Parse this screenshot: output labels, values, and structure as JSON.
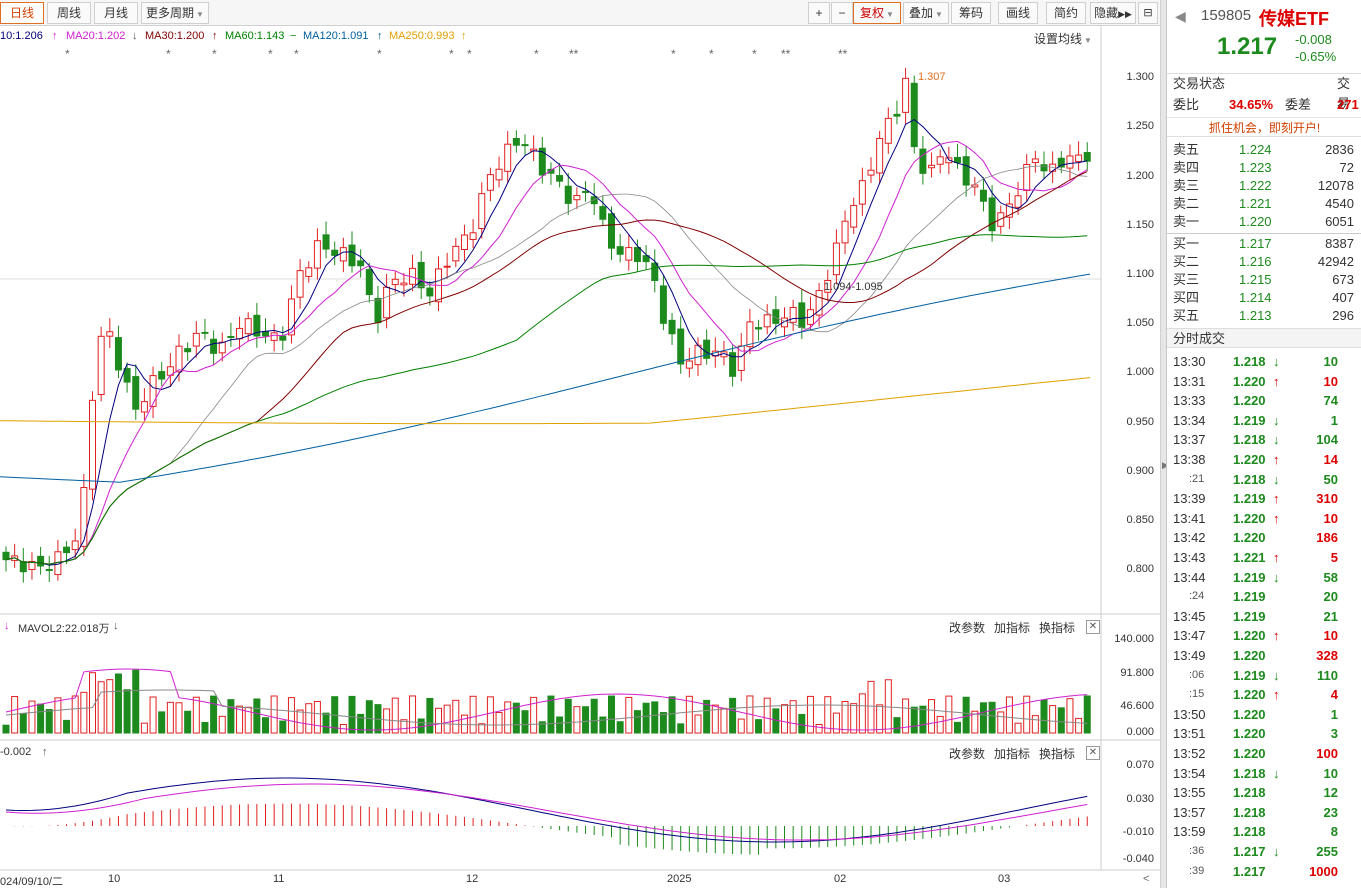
{
  "toolbar": {
    "tabs": [
      "日线",
      "周线",
      "月线",
      "更多周期"
    ],
    "tools": [
      "+",
      "−",
      "复权",
      "叠加",
      "筹码",
      "画线",
      "简约",
      "隐藏"
    ]
  },
  "ma_legend": {
    "ma10": "10:1.206",
    "ma20": "MA20:1.202",
    "ma30": "MA30:1.200",
    "ma60": "MA60:1.143",
    "ma120": "MA120:1.091",
    "ma250": "MA250:0.993",
    "settings": "设置均线"
  },
  "price_axis": [
    "1.300",
    "1.250",
    "1.200",
    "1.150",
    "1.100",
    "1.050",
    "1.000",
    "0.950",
    "0.900",
    "0.850",
    "0.800"
  ],
  "annotations": {
    "high": "1.307",
    "mid": "1.094-1.095"
  },
  "vol_panel": {
    "legend": "MAVOL2:22.018万",
    "links": [
      "改参数",
      "加指标",
      "换指标"
    ],
    "axis": [
      "140.000",
      "91.800",
      "46.600",
      "0.000"
    ]
  },
  "macd_panel": {
    "legend": "-0.002",
    "links": [
      "改参数",
      "加指标",
      "换指标"
    ],
    "axis": [
      "0.070",
      "0.030",
      "-0.010",
      "-0.040"
    ]
  },
  "x_axis": [
    "024/09/10/二",
    "10",
    "11",
    "12",
    "2025",
    "02",
    "03"
  ],
  "quote": {
    "code": "159805",
    "name": "传媒ETF",
    "price": "1.217",
    "change": "-0.008",
    "pct": "-0.65%",
    "status_label": "交易状态",
    "status_right": "交易",
    "ratio_label": "委比",
    "ratio_val": "34.65%",
    "diff_label": "委差",
    "diff_val": "271",
    "promo": "抓住机会，即刻开户!",
    "asks": [
      [
        "卖五",
        "1.224",
        "2836"
      ],
      [
        "卖四",
        "1.223",
        "72"
      ],
      [
        "卖三",
        "1.222",
        "12078"
      ],
      [
        "卖二",
        "1.221",
        "4540"
      ],
      [
        "卖一",
        "1.220",
        "6051"
      ]
    ],
    "bids": [
      [
        "买一",
        "1.217",
        "8387"
      ],
      [
        "买二",
        "1.216",
        "42942"
      ],
      [
        "买三",
        "1.215",
        "673"
      ],
      [
        "买四",
        "1.214",
        "407"
      ],
      [
        "买五",
        "1.213",
        "296"
      ]
    ],
    "ticks_title": "分时成交",
    "ticks": [
      [
        "13:30",
        "1.218",
        "down",
        "10"
      ],
      [
        "13:31",
        "1.220",
        "up",
        "10"
      ],
      [
        "13:33",
        "1.220",
        "",
        "74"
      ],
      [
        "13:34",
        "1.219",
        "down",
        "1"
      ],
      [
        "13:37",
        "1.218",
        "down",
        "104"
      ],
      [
        "13:38",
        "1.220",
        "up",
        "14"
      ],
      [
        ":21",
        "1.218",
        "down",
        "50"
      ],
      [
        "13:39",
        "1.219",
        "up",
        "310"
      ],
      [
        "13:41",
        "1.220",
        "up",
        "10"
      ],
      [
        "13:42",
        "1.220",
        "",
        "186"
      ],
      [
        "13:43",
        "1.221",
        "up",
        "5"
      ],
      [
        "13:44",
        "1.219",
        "down",
        "58"
      ],
      [
        ":24",
        "1.219",
        "",
        "20"
      ],
      [
        "13:45",
        "1.219",
        "",
        "21"
      ],
      [
        "13:47",
        "1.220",
        "up",
        "10"
      ],
      [
        "13:49",
        "1.220",
        "",
        "328"
      ],
      [
        ":06",
        "1.219",
        "down",
        "110"
      ],
      [
        ":15",
        "1.220",
        "up",
        "4"
      ],
      [
        "13:50",
        "1.220",
        "",
        "1"
      ],
      [
        "13:51",
        "1.220",
        "",
        "3"
      ],
      [
        "13:52",
        "1.220",
        "",
        "100"
      ],
      [
        "13:54",
        "1.218",
        "down",
        "10"
      ],
      [
        "13:55",
        "1.218",
        "",
        "12"
      ],
      [
        "13:57",
        "1.218",
        "",
        "23"
      ],
      [
        "13:59",
        "1.218",
        "",
        "8"
      ],
      [
        ":36",
        "1.217",
        "down",
        "255"
      ],
      [
        ":39",
        "1.217",
        "",
        "1000"
      ]
    ]
  },
  "colors": {
    "up": "#e02020",
    "down": "#1d8a1d",
    "ma10": "#000080",
    "ma20": "#d020d0",
    "ma30": "#800000",
    "ma60": "#008000",
    "ma120": "#0060a0",
    "ma250": "#e0a000"
  }
}
